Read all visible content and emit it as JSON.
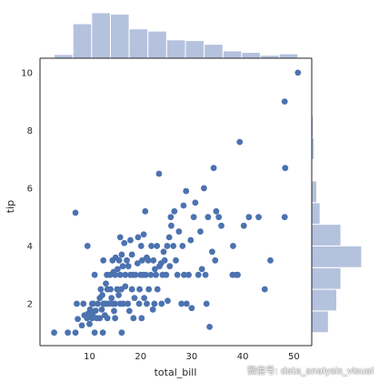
{
  "chart_data": {
    "type": "scatter",
    "title": "",
    "xlabel": "total_bill",
    "ylabel": "tip",
    "xlim": [
      0.3,
      53.5
    ],
    "ylim": [
      0.55,
      10.5
    ],
    "xticks": [
      10,
      20,
      30,
      40,
      50
    ],
    "yticks": [
      2,
      4,
      6,
      8,
      10
    ],
    "grid": false,
    "point_color": "#4c72b0",
    "hist_color": "#b4c2de",
    "points": [
      [
        3.07,
        1.0
      ],
      [
        5.75,
        1.0
      ],
      [
        7.25,
        1.0
      ],
      [
        7.25,
        5.15
      ],
      [
        7.5,
        2.0
      ],
      [
        7.7,
        1.47
      ],
      [
        8.5,
        1.25
      ],
      [
        8.8,
        2.0
      ],
      [
        9.0,
        1.6
      ],
      [
        9.5,
        1.5
      ],
      [
        9.6,
        4.0
      ],
      [
        9.7,
        1.65
      ],
      [
        10.0,
        1.3
      ],
      [
        10.1,
        1.8
      ],
      [
        10.3,
        1.7
      ],
      [
        10.5,
        1.5
      ],
      [
        10.5,
        2.0
      ],
      [
        10.6,
        1.61
      ],
      [
        10.7,
        2.0
      ],
      [
        11.0,
        3.0
      ],
      [
        11.0,
        1.0
      ],
      [
        11.2,
        1.76
      ],
      [
        11.4,
        1.5
      ],
      [
        11.6,
        2.0
      ],
      [
        12.0,
        1.5
      ],
      [
        12.0,
        2.2
      ],
      [
        12.2,
        2.5
      ],
      [
        12.4,
        1.8
      ],
      [
        12.5,
        2.3
      ],
      [
        12.6,
        1.0
      ],
      [
        12.7,
        2.0
      ],
      [
        12.7,
        3.5
      ],
      [
        13.0,
        2.0
      ],
      [
        13.0,
        1.6
      ],
      [
        13.2,
        2.7
      ],
      [
        13.3,
        2.0
      ],
      [
        13.4,
        3.0
      ],
      [
        13.5,
        2.5
      ],
      [
        13.5,
        1.5
      ],
      [
        13.8,
        2.0
      ],
      [
        14.0,
        3.0
      ],
      [
        14.1,
        2.5
      ],
      [
        14.3,
        2.2
      ],
      [
        14.5,
        3.5
      ],
      [
        14.5,
        2.0
      ],
      [
        14.7,
        3.1
      ],
      [
        14.8,
        1.75
      ],
      [
        15.0,
        2.0
      ],
      [
        15.0,
        3.0
      ],
      [
        15.0,
        1.5
      ],
      [
        15.1,
        3.6
      ],
      [
        15.4,
        2.5
      ],
      [
        15.5,
        3.2
      ],
      [
        15.7,
        2.3
      ],
      [
        15.8,
        3.5
      ],
      [
        16.0,
        3.0
      ],
      [
        16.0,
        2.0
      ],
      [
        16.0,
        4.3
      ],
      [
        16.2,
        2.5
      ],
      [
        16.3,
        3.7
      ],
      [
        16.3,
        1.0
      ],
      [
        16.5,
        3.3
      ],
      [
        16.6,
        2.0
      ],
      [
        16.8,
        4.1
      ],
      [
        17.0,
        2.6
      ],
      [
        17.0,
        3.0
      ],
      [
        17.3,
        3.5
      ],
      [
        17.5,
        2.0
      ],
      [
        17.6,
        3.3
      ],
      [
        17.8,
        1.75
      ],
      [
        18.0,
        3.0
      ],
      [
        18.0,
        4.2
      ],
      [
        18.3,
        2.5
      ],
      [
        18.3,
        3.7
      ],
      [
        18.5,
        3.0
      ],
      [
        18.6,
        1.5
      ],
      [
        18.8,
        2.2
      ],
      [
        19.0,
        3.0
      ],
      [
        19.4,
        3.4
      ],
      [
        19.5,
        4.3
      ],
      [
        19.7,
        2.0
      ],
      [
        19.8,
        2.5
      ],
      [
        20.0,
        3.0
      ],
      [
        20.1,
        4.0
      ],
      [
        20.2,
        1.5
      ],
      [
        20.3,
        3.5
      ],
      [
        20.5,
        3.0
      ],
      [
        20.6,
        4.4
      ],
      [
        20.7,
        2.2
      ],
      [
        20.9,
        5.2
      ],
      [
        21.0,
        3.0
      ],
      [
        21.2,
        2.0
      ],
      [
        21.2,
        3.6
      ],
      [
        21.5,
        3.5
      ],
      [
        21.6,
        2.5
      ],
      [
        22.0,
        3.0
      ],
      [
        22.1,
        4.0
      ],
      [
        22.4,
        1.8
      ],
      [
        22.5,
        3.5
      ],
      [
        22.7,
        2.0
      ],
      [
        22.8,
        3.2
      ],
      [
        23.0,
        3.0
      ],
      [
        23.2,
        4.0
      ],
      [
        23.3,
        2.5
      ],
      [
        23.6,
        6.5
      ],
      [
        23.7,
        3.3
      ],
      [
        24.0,
        3.4
      ],
      [
        24.1,
        2.0
      ],
      [
        24.3,
        3.0
      ],
      [
        24.5,
        3.8
      ],
      [
        24.7,
        3.5
      ],
      [
        25.0,
        3.0
      ],
      [
        25.2,
        4.0
      ],
      [
        25.3,
        2.1
      ],
      [
        25.6,
        4.3
      ],
      [
        25.7,
        3.3
      ],
      [
        25.9,
        5.0
      ],
      [
        26.0,
        4.7
      ],
      [
        26.4,
        4.0
      ],
      [
        26.6,
        5.2
      ],
      [
        26.9,
        3.5
      ],
      [
        27.2,
        3.0
      ],
      [
        27.5,
        4.5
      ],
      [
        28.0,
        2.0
      ],
      [
        28.2,
        4.0
      ],
      [
        28.4,
        5.4
      ],
      [
        28.5,
        3.0
      ],
      [
        28.9,
        5.9
      ],
      [
        29.0,
        2.0
      ],
      [
        29.4,
        3.0
      ],
      [
        29.8,
        4.2
      ],
      [
        30.0,
        1.85
      ],
      [
        30.4,
        5.0
      ],
      [
        30.7,
        5.5
      ],
      [
        31.3,
        3.0
      ],
      [
        31.7,
        4.5
      ],
      [
        32.0,
        3.2
      ],
      [
        32.4,
        6.0
      ],
      [
        32.7,
        3.0
      ],
      [
        32.9,
        2.0
      ],
      [
        33.2,
        5.0
      ],
      [
        33.5,
        1.2
      ],
      [
        34.0,
        3.8
      ],
      [
        34.3,
        6.7
      ],
      [
        34.6,
        3.5
      ],
      [
        34.8,
        5.2
      ],
      [
        35.3,
        5.0
      ],
      [
        35.8,
        4.7
      ],
      [
        38.0,
        3.0
      ],
      [
        38.1,
        4.0
      ],
      [
        38.7,
        3.0
      ],
      [
        39.0,
        3.0
      ],
      [
        39.4,
        7.6
      ],
      [
        40.2,
        4.7
      ],
      [
        41.2,
        5.0
      ],
      [
        43.1,
        5.0
      ],
      [
        44.3,
        2.5
      ],
      [
        45.4,
        3.5
      ],
      [
        48.2,
        5.0
      ],
      [
        48.2,
        9.0
      ],
      [
        48.3,
        6.7
      ],
      [
        50.8,
        10.0
      ]
    ],
    "x_hist_counts": [
      5,
      47,
      62,
      60,
      40,
      37,
      25,
      24,
      19,
      10,
      8,
      4,
      6
    ],
    "y_hist_counts": [
      20,
      30,
      35,
      60,
      35,
      10,
      6,
      1,
      3,
      2,
      0,
      1
    ]
  },
  "watermark_text": "微信号: data_analysis_visual"
}
